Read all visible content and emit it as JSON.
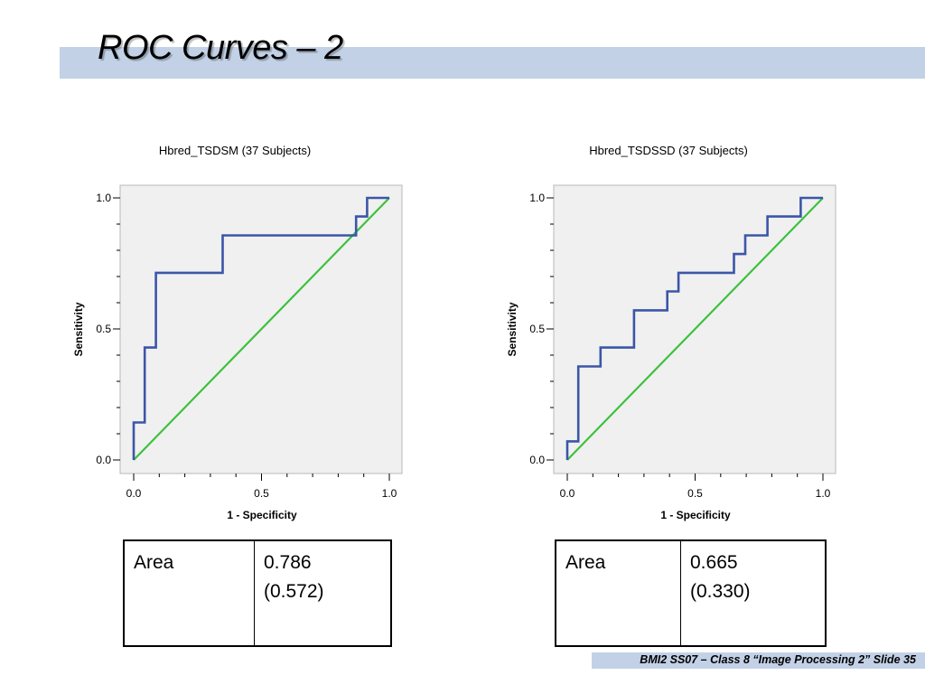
{
  "slide": {
    "title": "ROC Curves – 2",
    "footer": "BMI2 SS07 – Class 8 “Image Processing 2” Slide 35",
    "band_color": "#c2d1e6"
  },
  "chart_data": [
    {
      "type": "line",
      "title": "Hbred_TSDSM (37 Subjects)",
      "xlabel": "1 - Specificity",
      "ylabel": "Sensitivity",
      "xlim": [
        0,
        1
      ],
      "ylim": [
        0,
        1
      ],
      "xticks": [
        "0.0",
        "0.5",
        "1.0"
      ],
      "yticks": [
        "0.0",
        "0.5",
        "1.0"
      ],
      "grid": false,
      "series": [
        {
          "color": "#3b56a8",
          "x": [
            0,
            0,
            0.043,
            0.043,
            0.087,
            0.087,
            0.348,
            0.348,
            0.87,
            0.87,
            0.913,
            0.913,
            1.0
          ],
          "y": [
            0,
            0.143,
            0.143,
            0.429,
            0.429,
            0.714,
            0.714,
            0.857,
            0.857,
            0.929,
            0.929,
            1.0,
            1.0
          ]
        },
        {
          "color": "#3ec13e",
          "x": [
            0,
            1
          ],
          "y": [
            0,
            1
          ]
        }
      ],
      "table": {
        "label": "Area",
        "value": "0.786",
        "note": "(0.572)"
      }
    },
    {
      "type": "line",
      "title": "Hbred_TSDSSD (37 Subjects)",
      "xlabel": "1 - Specificity",
      "ylabel": "Sensitivity",
      "xlim": [
        0,
        1
      ],
      "ylim": [
        0,
        1
      ],
      "xticks": [
        "0.0",
        "0.5",
        "1.0"
      ],
      "yticks": [
        "0.0",
        "0.5",
        "1.0"
      ],
      "grid": false,
      "series": [
        {
          "color": "#3b56a8",
          "x": [
            0,
            0,
            0.043,
            0.043,
            0.13,
            0.13,
            0.261,
            0.261,
            0.391,
            0.391,
            0.435,
            0.435,
            0.652,
            0.652,
            0.696,
            0.696,
            0.783,
            0.783,
            0.913,
            0.913,
            1.0
          ],
          "y": [
            0,
            0.071,
            0.071,
            0.357,
            0.357,
            0.429,
            0.429,
            0.571,
            0.571,
            0.643,
            0.643,
            0.714,
            0.714,
            0.786,
            0.786,
            0.857,
            0.857,
            0.929,
            0.929,
            1.0,
            1.0
          ]
        },
        {
          "color": "#3ec13e",
          "x": [
            0,
            1
          ],
          "y": [
            0,
            1
          ]
        }
      ],
      "table": {
        "label": "Area",
        "value": "0.665",
        "note": "(0.330)"
      }
    }
  ]
}
